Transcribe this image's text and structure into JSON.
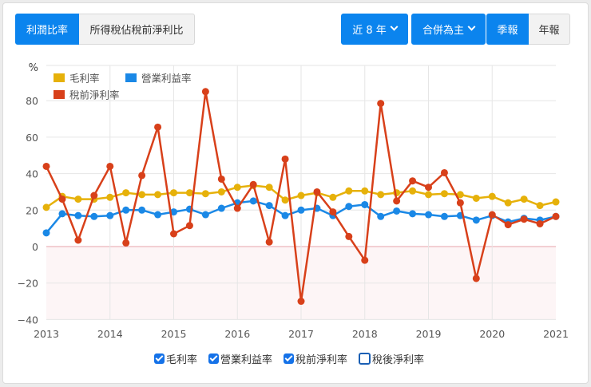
{
  "tabs": [
    {
      "label": "利潤比率",
      "active": true
    },
    {
      "label": "所得稅佔稅前淨利比",
      "active": false
    }
  ],
  "controls": {
    "range_label": "近 8 年",
    "basis_label": "合併為主",
    "period_options": [
      {
        "label": "季報",
        "active": true
      },
      {
        "label": "年報",
        "active": false
      }
    ]
  },
  "colors": {
    "primary": "#0b84ee",
    "gross": "#e6b10a",
    "operating": "#1a88e6",
    "pretax": "#d8401a",
    "zero_line": "#e7a3ab",
    "negative_fill": "#fdf5f6"
  },
  "series_toggles": [
    {
      "label": "毛利率",
      "checked": true
    },
    {
      "label": "營業利益率",
      "checked": true
    },
    {
      "label": "稅前淨利率",
      "checked": true
    },
    {
      "label": "稅後淨利率",
      "checked": false
    }
  ],
  "chart_data": {
    "type": "line",
    "title": "",
    "xlabel": "",
    "ylabel": "%",
    "ylim": [
      -40,
      90
    ],
    "yticks": [
      80,
      60,
      40,
      20,
      0,
      -20,
      -40
    ],
    "xticks": [
      "2013",
      "2014",
      "2015",
      "2016",
      "2017",
      "2018",
      "2019",
      "2020",
      "2021"
    ],
    "legend_position": "top-left",
    "grid": true,
    "x": [
      "2013Q1",
      "2013Q2",
      "2013Q3",
      "2013Q4",
      "2014Q1",
      "2014Q2",
      "2014Q3",
      "2014Q4",
      "2015Q1",
      "2015Q2",
      "2015Q3",
      "2015Q4",
      "2016Q1",
      "2016Q2",
      "2016Q3",
      "2016Q4",
      "2017Q1",
      "2017Q2",
      "2017Q3",
      "2017Q4",
      "2018Q1",
      "2018Q2",
      "2018Q3",
      "2018Q4",
      "2019Q1",
      "2019Q2",
      "2019Q3",
      "2019Q4",
      "2020Q1",
      "2020Q2",
      "2020Q3",
      "2020Q4",
      "2021Q1"
    ],
    "series": [
      {
        "name": "毛利率",
        "color": "#e6b10a",
        "values": [
          21.5,
          27.5,
          26,
          26,
          27,
          29.5,
          28.5,
          28.5,
          29.5,
          29.5,
          29,
          30,
          32.5,
          33.5,
          32.5,
          25.5,
          28,
          29.5,
          27,
          30.5,
          30.5,
          28.5,
          29.5,
          30.5,
          28.5,
          29,
          28.5,
          26.5,
          27.5,
          24,
          26,
          22.5,
          24.5
        ]
      },
      {
        "name": "營業利益率",
        "color": "#1a88e6",
        "values": [
          7.5,
          18,
          17,
          16.5,
          17,
          20,
          20,
          17.5,
          19,
          20.5,
          17.5,
          21,
          24,
          25,
          22.5,
          17,
          20,
          21,
          17,
          22,
          23,
          16.5,
          19.5,
          18,
          17.5,
          16.5,
          17,
          14.5,
          17,
          13.5,
          15.5,
          14.5,
          16.5
        ]
      },
      {
        "name": "稅前淨利率",
        "color": "#d8401a",
        "values": [
          44,
          26,
          3.5,
          28,
          44,
          2,
          39,
          65.5,
          7,
          11.5,
          85,
          37,
          21,
          34,
          2.5,
          48,
          -30,
          30,
          19,
          5.5,
          -7.5,
          78.5,
          25,
          36,
          32.5,
          40.5,
          24,
          -17.5,
          17.5,
          12,
          15,
          12.5,
          16.5
        ]
      }
    ]
  }
}
